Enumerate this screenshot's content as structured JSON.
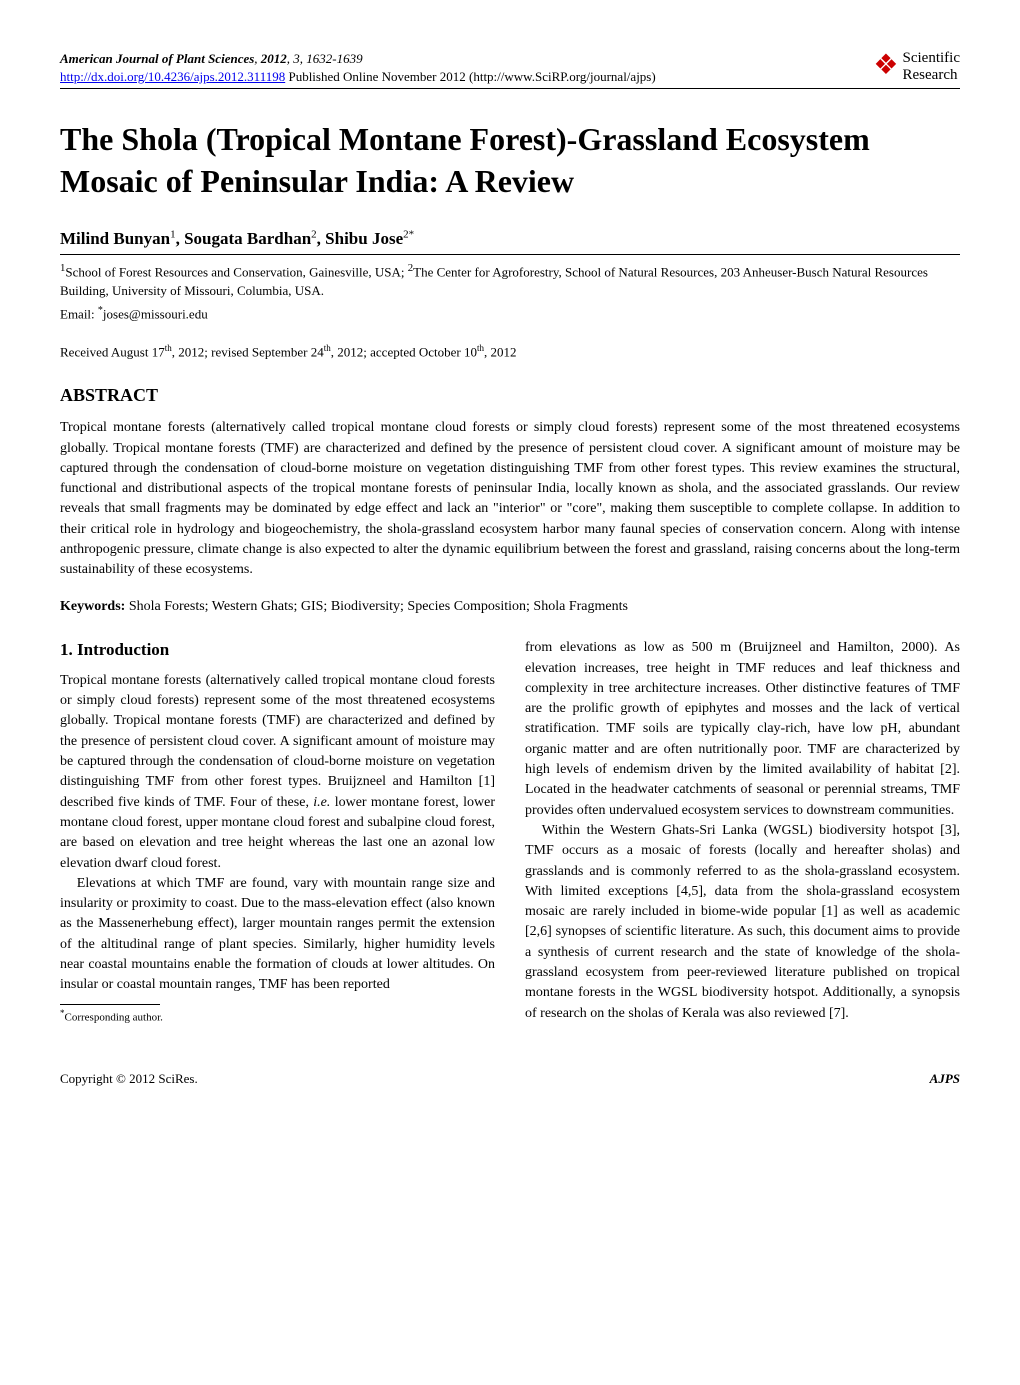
{
  "journal": {
    "name": "American Journal of Plant Sciences",
    "year": "2012",
    "volume": "3",
    "pages": "1632-1639",
    "doi_url": "http://dx.doi.org/10.4236/ajps.2012.311198",
    "pub_info": "Published Online November 2012 (http://www.SciRP.org/journal/ajps)"
  },
  "logo": {
    "scientific": "Scientific",
    "research": "Research"
  },
  "title": "The Shola (Tropical Montane Forest)-Grassland Ecosystem Mosaic of Peninsular India: A Review",
  "authors": {
    "author1_name": "Milind Bunyan",
    "author1_sup": "1",
    "author2_name": "Sougata Bardhan",
    "author2_sup": "2",
    "author3_name": "Shibu Jose",
    "author3_sup": "2*",
    "sep": ", "
  },
  "affiliations": {
    "aff1_sup": "1",
    "aff1_text": "School of Forest Resources and Conservation, Gainesville, USA; ",
    "aff2_sup": "2",
    "aff2_text": "The Center for Agroforestry, School of Natural Resources, 203 Anheuser-Busch Natural Resources Building, University of Missouri, Columbia, USA."
  },
  "email": {
    "label": "Email: ",
    "sup": "*",
    "address": "joses@missouri.edu"
  },
  "dates": {
    "received_label": "Received August 17",
    "received_sup": "th",
    "received_year": ", 2012; ",
    "revised_label": "revised September 24",
    "revised_sup": "th",
    "revised_year": ", 2012; ",
    "accepted_label": "accepted October 10",
    "accepted_sup": "th",
    "accepted_year": ", 2012"
  },
  "abstract": {
    "heading": "ABSTRACT",
    "body": "Tropical montane forests (alternatively called tropical montane cloud forests or simply cloud forests) represent some of the most threatened ecosystems globally. Tropical montane forests (TMF) are characterized and defined by the presence of persistent cloud cover. A significant amount of moisture may be captured through the condensation of cloud-borne moisture on vegetation distinguishing TMF from other forest types. This review examines the structural, functional and distributional aspects of the tropical montane forests of peninsular India, locally known as shola, and the associated grasslands. Our review reveals that small fragments may be dominated by edge effect and lack an \"interior\" or \"core\", making them susceptible to complete collapse. In addition to their critical role in hydrology and biogeochemistry, the shola-grassland ecosystem harbor many faunal species of conservation concern. Along with intense anthropogenic pressure, climate change is also expected to alter the dynamic equilibrium between the forest and grassland, raising concerns about the long-term sustainability of these ecosystems."
  },
  "keywords": {
    "label": "Keywords:",
    "text": " Shola Forests; Western Ghats; GIS; Biodiversity; Species Composition; Shola Fragments"
  },
  "section1": {
    "heading": "1. Introduction",
    "col1_p1": "Tropical montane forests (alternatively called tropical montane cloud forests or simply cloud forests) represent some of the most threatened ecosystems globally. Tropical montane forests (TMF) are characterized and defined by the presence of persistent cloud cover. A significant amount of moisture may be captured through the condensation of cloud-borne moisture on vegetation distinguishing TMF from other forest types. Bruijzneel and Hamilton [1] described five kinds of TMF. Four of these, ",
    "col1_p1_italic": "i.e.",
    "col1_p1_cont": " lower montane forest, lower montane cloud forest, upper montane cloud forest and subalpine cloud forest, are based on elevation and tree height whereas the last one an azonal low elevation dwarf cloud forest.",
    "col1_p2": "Elevations at which TMF are found, vary with mountain range size and insularity or proximity to coast. Due to the mass-elevation effect (also known as the Massenerhebung effect), larger mountain ranges permit the extension of the altitudinal range of plant species. Similarly, higher humidity levels near coastal mountains enable the formation of clouds at lower altitudes. On insular or coastal mountain ranges, TMF has been reported",
    "col2_p1": "from elevations as low as 500 m (Bruijzneel and Hamilton, 2000). As elevation increases, tree height in TMF reduces and leaf thickness and complexity in tree architecture increases. Other distinctive features of TMF are the prolific growth of epiphytes and mosses and the lack of vertical stratification. TMF soils are typically clay-rich, have low pH, abundant organic matter and are often nutritionally poor. TMF are characterized by high levels of endemism driven by the limited availability of habitat [2]. Located in the headwater catchments of seasonal or perennial streams, TMF provides often undervalued ecosystem services to downstream communities.",
    "col2_p2": "Within the Western Ghats-Sri Lanka (WGSL) biodiversity hotspot [3], TMF occurs as a mosaic of forests (locally and hereafter sholas) and grasslands and is commonly referred to as the shola-grassland ecosystem. With limited exceptions [4,5], data from the shola-grassland ecosystem mosaic are rarely included in biome-wide popular [1] as well as academic [2,6] synopses of scientific literature. As such, this document aims to provide a synthesis of current research and the state of knowledge of the shola-grassland ecosystem from peer-reviewed literature published on tropical montane forests in the WGSL biodiversity hotspot. Additionally, a synopsis of research on the sholas of Kerala was also reviewed [7]."
  },
  "corresponding": {
    "sup": "*",
    "text": "Corresponding author."
  },
  "footer": {
    "left": "Copyright © 2012 SciRes.",
    "right": "AJPS"
  },
  "colors": {
    "background": "#ffffff",
    "text": "#000000",
    "link": "#0000ee",
    "logo_icon": "#cc0000",
    "rule": "#000000"
  },
  "typography": {
    "body_font": "Times New Roman",
    "title_size_pt": 24,
    "author_size_pt": 13,
    "body_size_pt": 10.5,
    "abstract_heading_size_pt": 13,
    "section_heading_size_pt": 12
  }
}
